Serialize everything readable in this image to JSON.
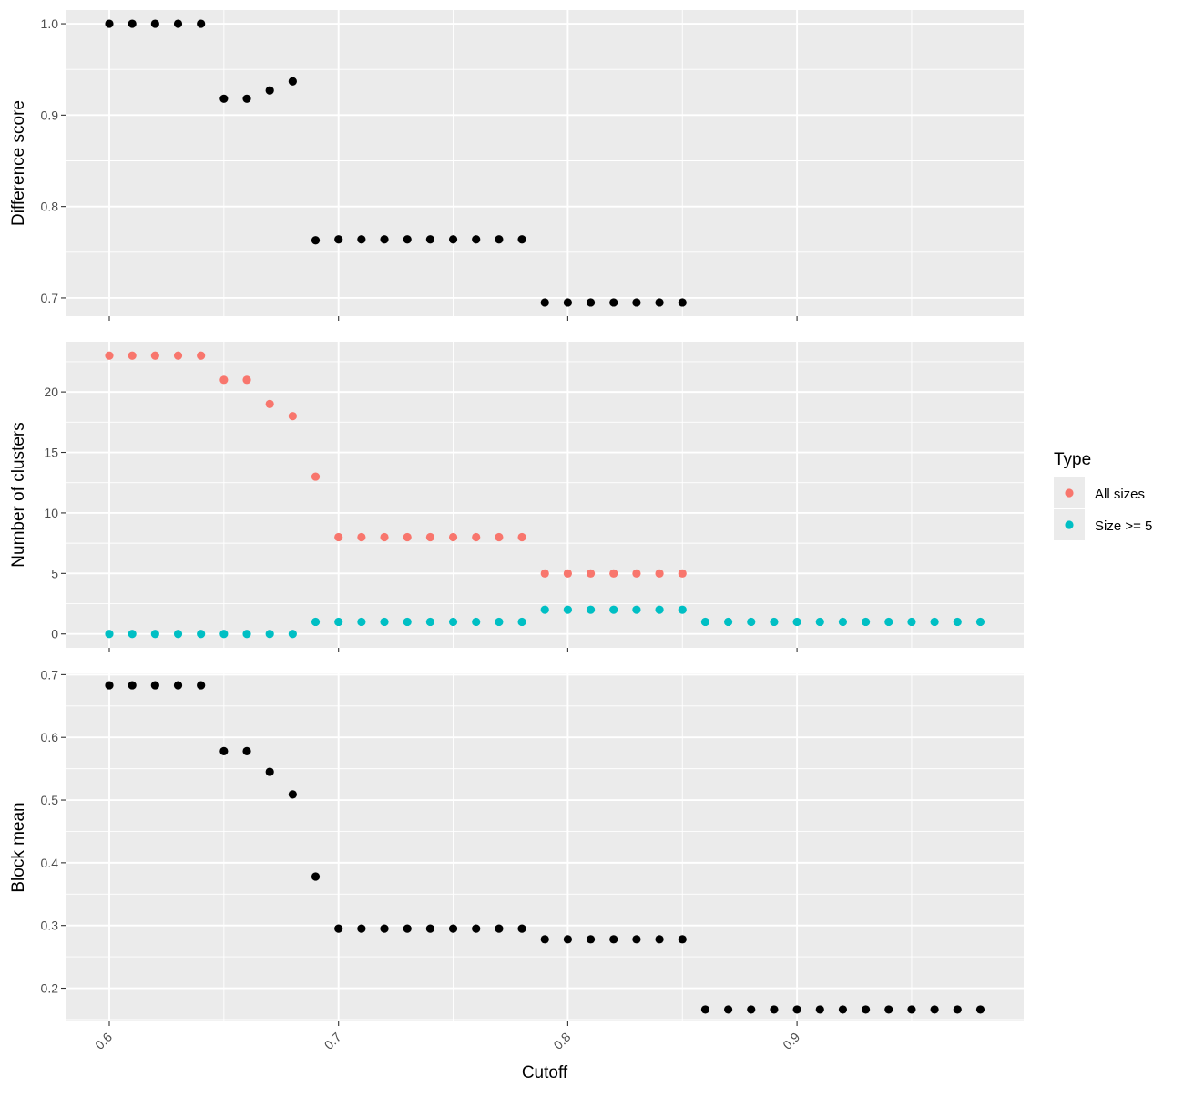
{
  "chart_data": {
    "type": "scatter",
    "xlabel": "Cutoff",
    "x_ticks": [
      0.6,
      0.7,
      0.8,
      0.9
    ],
    "x_tick_labels": [
      "0.6",
      "0.7",
      "0.8",
      "0.9"
    ],
    "xlim": [
      0.581,
      0.999
    ],
    "grid": true,
    "legend": {
      "title": "Type",
      "placement": "right",
      "entries": [
        {
          "label": "All sizes",
          "color": "#F8766D"
        },
        {
          "label": "Size >= 5",
          "color": "#00BFC4"
        }
      ]
    },
    "panels": [
      {
        "ylabel": "Difference score",
        "ylim": [
          0.68,
          1.015
        ],
        "y_ticks": [
          0.7,
          0.8,
          0.9,
          1.0
        ],
        "y_tick_labels": [
          "0.7",
          "0.8",
          "0.9",
          "1.0"
        ],
        "series": [
          {
            "color": "#000000",
            "x": [
              0.6,
              0.61,
              0.62,
              0.63,
              0.64,
              0.65,
              0.66,
              0.67,
              0.68,
              0.69,
              0.7,
              0.71,
              0.72,
              0.73,
              0.74,
              0.75,
              0.76,
              0.77,
              0.78,
              0.79,
              0.8,
              0.81,
              0.82,
              0.83,
              0.84,
              0.85
            ],
            "y": [
              1.0,
              1.0,
              1.0,
              1.0,
              1.0,
              0.918,
              0.918,
              0.927,
              0.937,
              0.763,
              0.764,
              0.764,
              0.764,
              0.764,
              0.764,
              0.764,
              0.764,
              0.764,
              0.764,
              0.695,
              0.695,
              0.695,
              0.695,
              0.695,
              0.695,
              0.695
            ]
          }
        ]
      },
      {
        "ylabel": "Number of clusters",
        "ylim": [
          -1.15,
          24.15
        ],
        "y_ticks": [
          0,
          5,
          10,
          15,
          20
        ],
        "y_tick_labels": [
          "0",
          "5",
          "10",
          "15",
          "20"
        ],
        "series": [
          {
            "name": "All sizes",
            "color": "#F8766D",
            "x": [
              0.6,
              0.61,
              0.62,
              0.63,
              0.64,
              0.65,
              0.66,
              0.67,
              0.68,
              0.69,
              0.7,
              0.71,
              0.72,
              0.73,
              0.74,
              0.75,
              0.76,
              0.77,
              0.78,
              0.79,
              0.8,
              0.81,
              0.82,
              0.83,
              0.84,
              0.85
            ],
            "y": [
              23,
              23,
              23,
              23,
              23,
              21,
              21,
              19,
              18,
              13,
              8,
              8,
              8,
              8,
              8,
              8,
              8,
              8,
              8,
              5,
              5,
              5,
              5,
              5,
              5,
              5
            ]
          },
          {
            "name": "Size >= 5",
            "color": "#00BFC4",
            "x": [
              0.6,
              0.61,
              0.62,
              0.63,
              0.64,
              0.65,
              0.66,
              0.67,
              0.68,
              0.69,
              0.7,
              0.71,
              0.72,
              0.73,
              0.74,
              0.75,
              0.76,
              0.77,
              0.78,
              0.79,
              0.8,
              0.81,
              0.82,
              0.83,
              0.84,
              0.85,
              0.86,
              0.87,
              0.88,
              0.89,
              0.9,
              0.91,
              0.92,
              0.93,
              0.94,
              0.95,
              0.96,
              0.97,
              0.98
            ],
            "y": [
              0,
              0,
              0,
              0,
              0,
              0,
              0,
              0,
              0,
              1,
              1,
              1,
              1,
              1,
              1,
              1,
              1,
              1,
              1,
              2,
              2,
              2,
              2,
              2,
              2,
              2,
              1,
              1,
              1,
              1,
              1,
              1,
              1,
              1,
              1,
              1,
              1,
              1,
              1
            ]
          }
        ]
      },
      {
        "ylabel": "Block mean",
        "ylim": [
          0.147,
          0.702
        ],
        "y_ticks": [
          0.2,
          0.3,
          0.4,
          0.5,
          0.6,
          0.7
        ],
        "y_tick_labels": [
          "0.2",
          "0.3",
          "0.4",
          "0.5",
          "0.6",
          "0.7"
        ],
        "series": [
          {
            "color": "#000000",
            "x": [
              0.6,
              0.61,
              0.62,
              0.63,
              0.64,
              0.65,
              0.66,
              0.67,
              0.68,
              0.69,
              0.7,
              0.71,
              0.72,
              0.73,
              0.74,
              0.75,
              0.76,
              0.77,
              0.78,
              0.79,
              0.8,
              0.81,
              0.82,
              0.83,
              0.84,
              0.85,
              0.86,
              0.87,
              0.88,
              0.89,
              0.9,
              0.91,
              0.92,
              0.93,
              0.94,
              0.95,
              0.96,
              0.97,
              0.98
            ],
            "y": [
              0.683,
              0.683,
              0.683,
              0.683,
              0.683,
              0.578,
              0.578,
              0.545,
              0.509,
              0.378,
              0.295,
              0.295,
              0.295,
              0.295,
              0.295,
              0.295,
              0.295,
              0.295,
              0.295,
              0.278,
              0.278,
              0.278,
              0.278,
              0.278,
              0.278,
              0.278,
              0.166,
              0.166,
              0.166,
              0.166,
              0.166,
              0.166,
              0.166,
              0.166,
              0.166,
              0.166,
              0.166,
              0.166,
              0.166
            ]
          }
        ]
      }
    ]
  }
}
